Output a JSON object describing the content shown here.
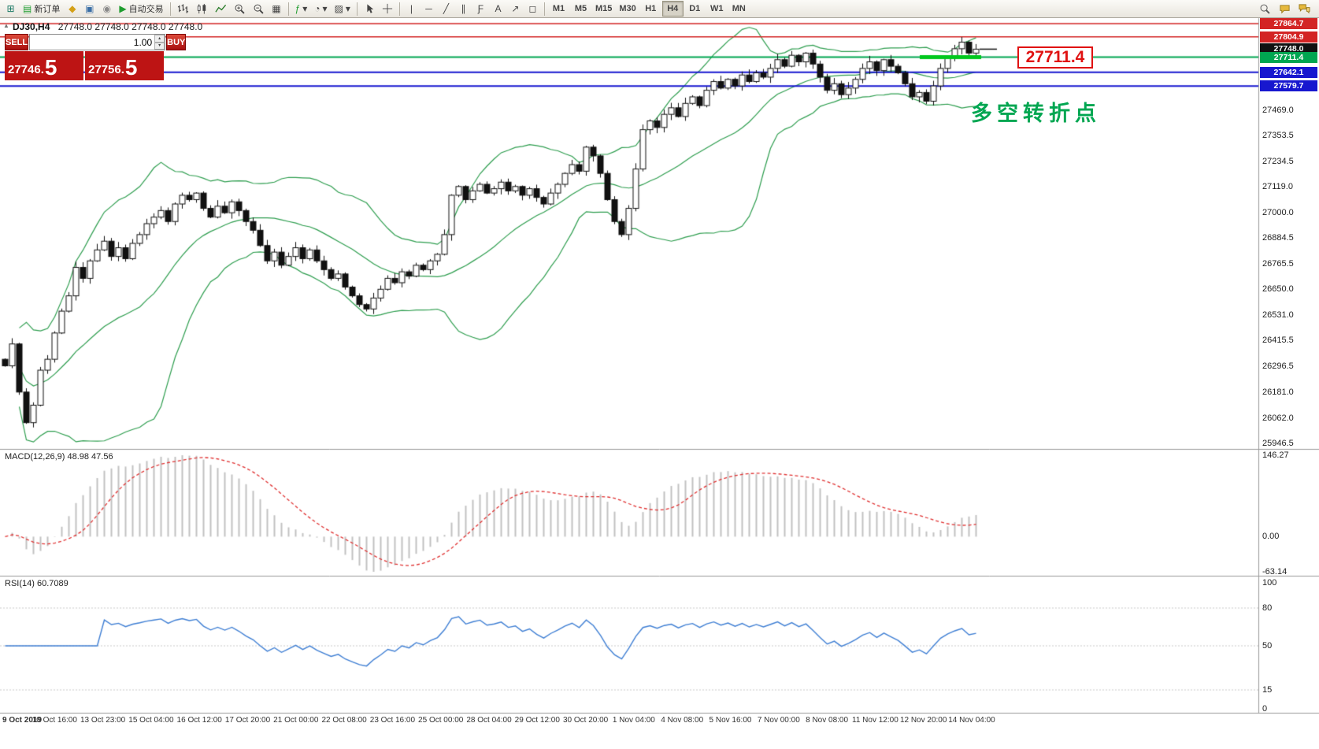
{
  "toolbar": {
    "new_order": "新订单",
    "auto_trading": "自动交易",
    "timeframes": {
      "items": [
        "M1",
        "M5",
        "M15",
        "M30",
        "H1",
        "H4",
        "D1",
        "W1",
        "MN"
      ],
      "active": "H4"
    }
  },
  "icons": {
    "new_chart": "⊞",
    "new_order": "▤",
    "mql5": "◆",
    "community": "▣",
    "alerts": "◉",
    "autotrade_play": "▶",
    "tile_windows": "▦",
    "indicators": "ƒ",
    "periods": "◔",
    "templates": "▨",
    "dropdown": "▾",
    "vline": "|",
    "hline": "─",
    "trendline": "╱",
    "channel": "∥",
    "fibonacci": "Ƒ",
    "text_tool": "A",
    "arrow_tool": "↗",
    "shapes": "◻",
    "collapse": "▲",
    "spin_up": "▴",
    "spin_down": "▾"
  },
  "chart": {
    "title": {
      "symbol": "DJ30,H4",
      "ohlc": "27748.0 27748.0 27748.0 27748.0"
    },
    "one_click": {
      "sell_label": "SELL",
      "buy_label": "BUY",
      "volume": "1.00",
      "sell_price_main": "27746.",
      "sell_price_last": "5",
      "buy_price_main": "27756.",
      "buy_price_last": "5"
    },
    "price_callout": "27711.4",
    "annotation": "多空转折点",
    "annotation_color": "#00a651",
    "price_axis": {
      "badges": [
        {
          "label": "27864.7",
          "value": 27864.7,
          "bg": "#d32424"
        },
        {
          "label": "27804.9",
          "value": 27804.9,
          "bg": "#d32424"
        },
        {
          "label": "27748.0",
          "value": 27748.0,
          "bg": "#111111"
        },
        {
          "label": "27711.4",
          "value": 27711.4,
          "bg": "#00a651"
        },
        {
          "label": "27642.1",
          "value": 27642.1,
          "bg": "#1717cf"
        },
        {
          "label": "27579.7",
          "value": 27579.7,
          "bg": "#1717cf"
        }
      ]
    }
  },
  "chart_data": {
    "type": "candlestick",
    "symbol": "DJ30",
    "timeframe": "H4",
    "last_ohlc": [
      27748.0,
      27748.0,
      27748.0,
      27748.0
    ],
    "bid": 27746.5,
    "ask": 27756.5,
    "closes": [
      26300,
      26400,
      26180,
      26040,
      26120,
      26280,
      26330,
      26450,
      26550,
      26620,
      26750,
      26700,
      26780,
      26830,
      26870,
      26800,
      26840,
      26790,
      26860,
      26900,
      26950,
      26980,
      27010,
      26960,
      27040,
      27080,
      27060,
      27090,
      27020,
      26980,
      27030,
      27000,
      27050,
      27010,
      26960,
      26920,
      26850,
      26780,
      26820,
      26760,
      26800,
      26840,
      26790,
      26830,
      26780,
      26740,
      26700,
      26720,
      26660,
      26620,
      26580,
      26560,
      26610,
      26650,
      26700,
      26680,
      26730,
      26710,
      26760,
      26740,
      26780,
      26810,
      26900,
      27080,
      27120,
      27060,
      27100,
      27130,
      27090,
      27110,
      27140,
      27100,
      27120,
      27080,
      27110,
      27070,
      27040,
      27090,
      27130,
      27180,
      27220,
      27190,
      27300,
      27260,
      27180,
      27060,
      26960,
      26900,
      27020,
      27200,
      27380,
      27420,
      27390,
      27450,
      27480,
      27440,
      27500,
      27530,
      27490,
      27560,
      27600,
      27570,
      27610,
      27580,
      27630,
      27600,
      27640,
      27620,
      27660,
      27700,
      27670,
      27720,
      27690,
      27730,
      27680,
      27620,
      27560,
      27590,
      27540,
      27570,
      27610,
      27660,
      27690,
      27650,
      27700,
      27670,
      27640,
      27590,
      27530,
      27550,
      27510,
      27580,
      27660,
      27710,
      27750,
      27780,
      27730,
      27748
    ],
    "x_labels": [
      "9 Oct 2019",
      "10 Oct 16:00",
      "13 Oct 23:00",
      "15 Oct 04:00",
      "16 Oct 12:00",
      "17 Oct 20:00",
      "21 Oct 00:00",
      "22 Oct 08:00",
      "23 Oct 16:00",
      "25 Oct 00:00",
      "28 Oct 04:00",
      "29 Oct 12:00",
      "30 Oct 20:00",
      "1 Nov 04:00",
      "4 Nov 08:00",
      "5 Nov 16:00",
      "7 Nov 00:00",
      "8 Nov 08:00",
      "11 Nov 12:00",
      "12 Nov 20:00",
      "14 Nov 04:00"
    ],
    "y_axis": {
      "min": 25946.5,
      "max": 27864.7,
      "ticks": [
        27469.0,
        27353.5,
        27234.5,
        27119.0,
        27000.0,
        26884.5,
        26765.5,
        26650.0,
        26531.0,
        26415.5,
        26296.5,
        26181.0,
        26062.0,
        25946.5
      ]
    },
    "levels": [
      {
        "price": 27864.7,
        "color": "#d32424",
        "width": 1.5
      },
      {
        "price": 27804.9,
        "color": "#d32424",
        "width": 1.5
      },
      {
        "price": 27711.4,
        "color": "#00a651",
        "width": 2
      },
      {
        "price": 27642.1,
        "color": "#1717cf",
        "width": 2
      },
      {
        "price": 27579.7,
        "color": "#1717cf",
        "width": 2
      }
    ],
    "highlight_segment": {
      "price": 27711.4,
      "color": "#00c81e"
    },
    "bollinger": {
      "period": 20,
      "deviation": 2,
      "color": "#2e9e4f"
    },
    "macd": {
      "label": "MACD(12,26,9) 48.98 47.56",
      "fast": 12,
      "slow": 26,
      "signal": 9,
      "values": [
        48.98,
        47.56
      ],
      "scale_labels": [
        "146.27",
        "0.00",
        "-63.14"
      ],
      "scale_values": [
        146.27,
        0,
        -63.14
      ],
      "hist_color": "#c2c2c2",
      "signal_color": "#e03030"
    },
    "rsi": {
      "label": "RSI(14) 60.7089",
      "period": 14,
      "value": 60.7089,
      "scale_labels": [
        "100",
        "80",
        "50",
        "15",
        "0"
      ],
      "scale_values": [
        100,
        80,
        50,
        15,
        0
      ],
      "level_lines": [
        80,
        50,
        15
      ],
      "color": "#3f7fd4"
    }
  }
}
